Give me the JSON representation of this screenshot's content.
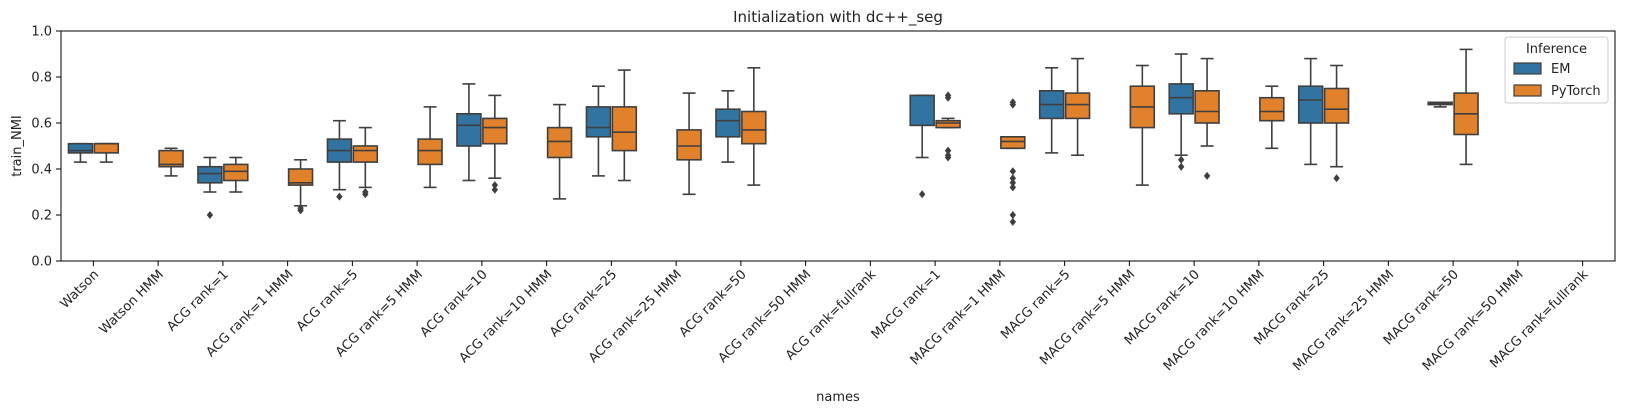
{
  "chart_data": {
    "type": "boxplot",
    "title": "Initialization with dc++_seg",
    "xlabel": "names",
    "ylabel": "train_NMI",
    "ylim": [
      0,
      1
    ],
    "yticks": [
      0.0,
      0.2,
      0.4,
      0.6,
      0.8,
      1.0
    ],
    "ytick_labels": [
      "0.0",
      "0.2",
      "0.4",
      "0.6",
      "0.8",
      "1.0"
    ],
    "categories": [
      "Watson",
      "Watson HMM",
      "ACG rank=1",
      "ACG rank=1 HMM",
      "ACG rank=5",
      "ACG rank=5 HMM",
      "ACG rank=10",
      "ACG rank=10 HMM",
      "ACG rank=25",
      "ACG rank=25 HMM",
      "ACG rank=50",
      "ACG rank=50 HMM",
      "ACG rank=fullrank",
      "MACG rank=1",
      "MACG rank=1 HMM",
      "MACG rank=5",
      "MACG rank=5 HMM",
      "MACG rank=10",
      "MACG rank=10 HMM",
      "MACG rank=25",
      "MACG rank=25 HMM",
      "MACG rank=50",
      "MACG rank=50 HMM",
      "MACG rank=fullrank"
    ],
    "legend": {
      "title": "Inference",
      "position": "upper right",
      "entries": [
        "EM",
        "PyTorch"
      ]
    },
    "grid": false,
    "series": [
      {
        "name": "EM",
        "color": "#3274a1",
        "boxes": [
          {
            "category": "Watson",
            "whislo": 0.43,
            "q1": 0.47,
            "med": 0.48,
            "q3": 0.51,
            "whishi": 0.51,
            "fliers": []
          },
          {
            "category": "ACG rank=1",
            "whislo": 0.3,
            "q1": 0.34,
            "med": 0.38,
            "q3": 0.41,
            "whishi": 0.45,
            "fliers": [
              0.2
            ]
          },
          {
            "category": "ACG rank=5",
            "whislo": 0.31,
            "q1": 0.43,
            "med": 0.48,
            "q3": 0.53,
            "whishi": 0.61,
            "fliers": [
              0.28
            ]
          },
          {
            "category": "ACG rank=10",
            "whislo": 0.35,
            "q1": 0.5,
            "med": 0.59,
            "q3": 0.64,
            "whishi": 0.77,
            "fliers": []
          },
          {
            "category": "ACG rank=25",
            "whislo": 0.37,
            "q1": 0.54,
            "med": 0.58,
            "q3": 0.67,
            "whishi": 0.76,
            "fliers": []
          },
          {
            "category": "ACG rank=50",
            "whislo": 0.43,
            "q1": 0.54,
            "med": 0.61,
            "q3": 0.66,
            "whishi": 0.74,
            "fliers": []
          },
          {
            "category": "MACG rank=1",
            "whislo": 0.45,
            "q1": 0.59,
            "med": 0.59,
            "q3": 0.72,
            "whishi": 0.72,
            "fliers": [
              0.29
            ]
          },
          {
            "category": "MACG rank=5",
            "whislo": 0.47,
            "q1": 0.62,
            "med": 0.68,
            "q3": 0.74,
            "whishi": 0.84,
            "fliers": []
          },
          {
            "category": "MACG rank=10",
            "whislo": 0.46,
            "q1": 0.64,
            "med": 0.71,
            "q3": 0.77,
            "whishi": 0.9,
            "fliers": [
              0.41,
              0.44
            ]
          },
          {
            "category": "MACG rank=25",
            "whislo": 0.42,
            "q1": 0.6,
            "med": 0.7,
            "q3": 0.76,
            "whishi": 0.88,
            "fliers": []
          },
          {
            "category": "MACG rank=50",
            "whislo": 0.67,
            "q1": 0.68,
            "med": 0.685,
            "q3": 0.69,
            "whishi": 0.69,
            "fliers": []
          }
        ]
      },
      {
        "name": "PyTorch",
        "color": "#e1812c",
        "boxes": [
          {
            "category": "Watson",
            "whislo": 0.43,
            "q1": 0.47,
            "med": 0.51,
            "q3": 0.51,
            "whishi": 0.51,
            "fliers": []
          },
          {
            "category": "Watson HMM",
            "whislo": 0.37,
            "q1": 0.41,
            "med": 0.42,
            "q3": 0.48,
            "whishi": 0.49,
            "fliers": []
          },
          {
            "category": "ACG rank=1",
            "whislo": 0.3,
            "q1": 0.35,
            "med": 0.39,
            "q3": 0.42,
            "whishi": 0.45,
            "fliers": []
          },
          {
            "category": "ACG rank=1 HMM",
            "whislo": 0.24,
            "q1": 0.33,
            "med": 0.34,
            "q3": 0.4,
            "whishi": 0.44,
            "fliers": [
              0.22,
              0.23
            ]
          },
          {
            "category": "ACG rank=5",
            "whislo": 0.32,
            "q1": 0.43,
            "med": 0.48,
            "q3": 0.5,
            "whishi": 0.58,
            "fliers": [
              0.29,
              0.3
            ]
          },
          {
            "category": "ACG rank=5 HMM",
            "whislo": 0.32,
            "q1": 0.42,
            "med": 0.48,
            "q3": 0.53,
            "whishi": 0.67,
            "fliers": []
          },
          {
            "category": "ACG rank=10",
            "whislo": 0.36,
            "q1": 0.51,
            "med": 0.58,
            "q3": 0.62,
            "whishi": 0.72,
            "fliers": [
              0.31,
              0.33
            ]
          },
          {
            "category": "ACG rank=10 HMM",
            "whislo": 0.27,
            "q1": 0.45,
            "med": 0.52,
            "q3": 0.58,
            "whishi": 0.68,
            "fliers": []
          },
          {
            "category": "ACG rank=25",
            "whislo": 0.35,
            "q1": 0.48,
            "med": 0.56,
            "q3": 0.67,
            "whishi": 0.83,
            "fliers": []
          },
          {
            "category": "ACG rank=25 HMM",
            "whislo": 0.29,
            "q1": 0.44,
            "med": 0.5,
            "q3": 0.57,
            "whishi": 0.73,
            "fliers": []
          },
          {
            "category": "ACG rank=50",
            "whislo": 0.33,
            "q1": 0.51,
            "med": 0.57,
            "q3": 0.65,
            "whishi": 0.84,
            "fliers": []
          },
          {
            "category": "MACG rank=1",
            "whislo": 0.58,
            "q1": 0.58,
            "med": 0.6,
            "q3": 0.61,
            "whishi": 0.62,
            "fliers": [
              0.45,
              0.46,
              0.48,
              0.71,
              0.72
            ]
          },
          {
            "category": "MACG rank=1 HMM",
            "whislo": 0.49,
            "q1": 0.49,
            "med": 0.52,
            "q3": 0.54,
            "whishi": 0.54,
            "fliers": [
              0.17,
              0.2,
              0.32,
              0.34,
              0.36,
              0.39,
              0.68,
              0.69
            ]
          },
          {
            "category": "MACG rank=5",
            "whislo": 0.46,
            "q1": 0.62,
            "med": 0.68,
            "q3": 0.73,
            "whishi": 0.88,
            "fliers": []
          },
          {
            "category": "MACG rank=5 HMM",
            "whislo": 0.33,
            "q1": 0.58,
            "med": 0.67,
            "q3": 0.76,
            "whishi": 0.85,
            "fliers": []
          },
          {
            "category": "MACG rank=10",
            "whislo": 0.5,
            "q1": 0.6,
            "med": 0.65,
            "q3": 0.74,
            "whishi": 0.88,
            "fliers": [
              0.37
            ]
          },
          {
            "category": "MACG rank=10 HMM",
            "whislo": 0.49,
            "q1": 0.61,
            "med": 0.65,
            "q3": 0.71,
            "whishi": 0.76,
            "fliers": []
          },
          {
            "category": "MACG rank=25",
            "whislo": 0.41,
            "q1": 0.6,
            "med": 0.66,
            "q3": 0.75,
            "whishi": 0.85,
            "fliers": [
              0.36
            ]
          },
          {
            "category": "MACG rank=50",
            "whislo": 0.42,
            "q1": 0.55,
            "med": 0.64,
            "q3": 0.73,
            "whishi": 0.92,
            "fliers": []
          }
        ]
      }
    ]
  }
}
